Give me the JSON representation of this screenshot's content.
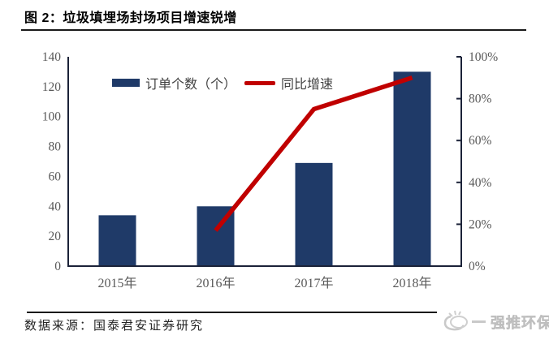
{
  "header": {
    "title": "图 2：垃圾填埋场封场项目增速锐增"
  },
  "chart_data": {
    "type": "bar+line",
    "categories": [
      "2015年",
      "2016年",
      "2017年",
      "2018年"
    ],
    "series": [
      {
        "name": "订单个数（个）",
        "type": "bar",
        "axis": "left",
        "values": [
          34,
          40,
          69,
          130
        ],
        "color": "#1F3A68"
      },
      {
        "name": "同比增速",
        "type": "line",
        "axis": "right",
        "values": [
          null,
          17,
          75,
          90
        ],
        "color": "#C00000"
      }
    ],
    "left_axis": {
      "min": 0,
      "max": 140,
      "step": 20,
      "ticks": [
        "0",
        "20",
        "40",
        "60",
        "80",
        "100",
        "120",
        "140"
      ]
    },
    "right_axis": {
      "min": 0,
      "max": 100,
      "step": 20,
      "ticks": [
        "0%",
        "20%",
        "40%",
        "60%",
        "80%",
        "100%"
      ]
    },
    "legend_position": "top-inside",
    "grid": false,
    "axis_color": "#1B2238",
    "tick_label_color": "#595959"
  },
  "footer": {
    "source": "数据来源：国泰君安证券研究",
    "logo_text": "强推环保"
  }
}
